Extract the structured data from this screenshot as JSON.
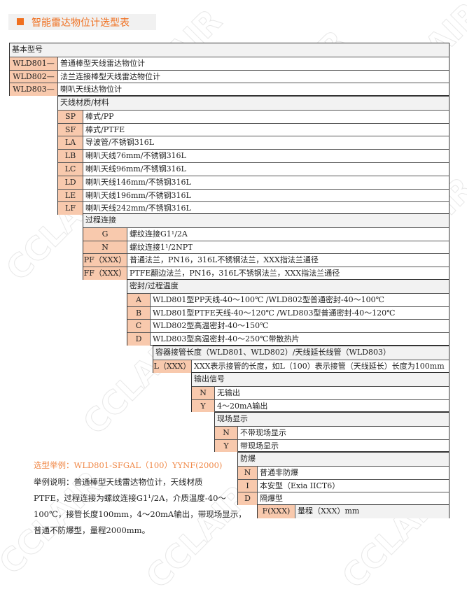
{
  "watermark": "CCLAIR",
  "title": "智能雷达物位计选型表",
  "colors": {
    "accent": "#f07020",
    "code_cell": "#f8c9ad",
    "header_cell": "#f2f2f2"
  },
  "sections": [
    {
      "header": "基本型号",
      "rows": [
        {
          "code": "WLD801—",
          "label": "普通棒型天线雷达物位计"
        },
        {
          "code": "WLD802—",
          "label": "法兰连接棒型天线雷达物位计"
        },
        {
          "code": "WLD803—",
          "label": "喇叭天线达物位计"
        }
      ]
    },
    {
      "header": "天线材质/材料",
      "rows": [
        {
          "code": "SP",
          "label": "棒式/PP"
        },
        {
          "code": "SF",
          "label": "棒式/PTFE"
        },
        {
          "code": "LA",
          "label": "导波管/不锈钢316L"
        },
        {
          "code": "LB",
          "label": "喇叭天线76mm/不锈钢316L"
        },
        {
          "code": "LC",
          "label": "喇叭天线96mm/不锈钢316L"
        },
        {
          "code": "LD",
          "label": "喇叭天线146mm/不锈钢316L"
        },
        {
          "code": "LE",
          "label": "喇叭天线196mm/不锈钢316L"
        },
        {
          "code": "LF",
          "label": "喇叭天线242mm/不锈钢316L"
        }
      ]
    },
    {
      "header": "过程连接",
      "rows": [
        {
          "code": "G",
          "label": "螺纹连接G1¹/2A"
        },
        {
          "code": "N",
          "label": "螺纹连接1¹/2NPT"
        },
        {
          "code": "PF（XXX）",
          "label": "普通法兰，PN16，316L不锈钢法兰，XXX指法兰通径"
        },
        {
          "code": "FF（XXX）",
          "label": "PTFE翻边法兰，PN16，316L不锈钢法兰，XXX指法兰通径"
        }
      ]
    },
    {
      "header": "密封/过程温度",
      "rows": [
        {
          "code": "A",
          "label": "WLD801型PP天线-40～100℃ /WLD802型普通密封-40～100℃"
        },
        {
          "code": "B",
          "label": "WLD801型PTFE天线-40～120℃ /WLD803型普通密封-40～120℃"
        },
        {
          "code": "C",
          "label": "WLD802型高温密封-40～150℃"
        },
        {
          "code": "D",
          "label": "WLD803型高温密封-40～250℃带散热片"
        }
      ]
    },
    {
      "header": "容器接管长度（WLD801、WLD802）/天线延长线管（WLD803）",
      "rows": [
        {
          "code": "L（XXX）",
          "label": "XXX表示接管的长度，如L（100）表示接管（天线延长）长度为100mm"
        }
      ]
    },
    {
      "header": "输出信号",
      "rows": [
        {
          "code": "N",
          "label": "无输出"
        },
        {
          "code": "Y",
          "label": "4～20mA输出"
        }
      ]
    },
    {
      "header": "现场显示",
      "rows": [
        {
          "code": "N",
          "label": "不带现场显示"
        },
        {
          "code": "Y",
          "label": "带现场显示"
        }
      ]
    },
    {
      "header": "防爆",
      "rows": [
        {
          "code": "N",
          "label": "普通非防爆"
        },
        {
          "code": "I",
          "label": "本安型（Exia IICT6）"
        },
        {
          "code": "D",
          "label": "隔爆型"
        }
      ]
    },
    {
      "header": "",
      "rows": [
        {
          "code": "F(XXX)",
          "label": "量程（XXX）mm"
        }
      ]
    }
  ],
  "example": {
    "title": "选型举例：WLD801-SFGAL（100）YYNF(2000)",
    "lines": [
      "举例说明：普通棒型天线雷达物位计，天线材质",
      "PTFE，过程连接为螺纹连接G1¹/2A，介质温度-40～",
      "100℃，接管长度100mm，4～20mA输出，带现场显示，",
      "普通不防爆型，量程2000mm。"
    ]
  }
}
